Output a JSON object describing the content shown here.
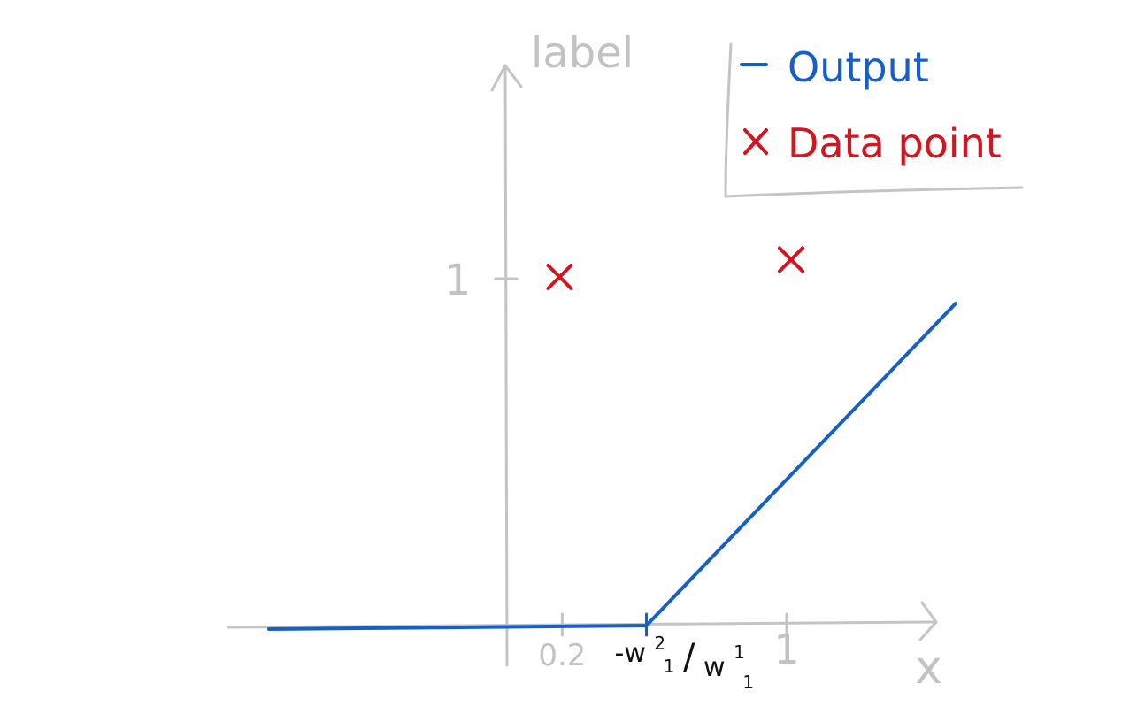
{
  "chart_data": {
    "type": "line",
    "xlabel": "x",
    "ylabel": "label",
    "x_ticks": [
      {
        "value": 0.2,
        "label": "0.2",
        "special": false
      },
      {
        "value": 0.5,
        "label": "-w",
        "special": true
      },
      {
        "value": 1,
        "label": "1",
        "special": false
      }
    ],
    "y_ticks": [
      {
        "value": 1,
        "label": "1"
      }
    ],
    "xlim": [
      -0.85,
      1.5
    ],
    "ylim": [
      -0.1,
      1.65
    ],
    "series": [
      {
        "name": "Output",
        "kind": "line",
        "color": "#1560c8",
        "x": [
          -0.85,
          0.5,
          1.6
        ],
        "y": [
          0.0,
          0.0,
          0.99
        ]
      },
      {
        "name": "Data point",
        "kind": "scatter",
        "color": "#d4141e",
        "x": [
          0.2,
          1.0
        ],
        "y": [
          1.0,
          1.05
        ]
      }
    ],
    "legend": {
      "position": "top-right",
      "entries": [
        "Output",
        "Data point"
      ]
    },
    "annotations": {
      "threshold_label": {
        "prefix": "-w",
        "numerator_sup": "2",
        "numerator_sub": "1",
        "slash": "/",
        "denominator": "w",
        "denominator_sup": "1",
        "denominator_sub": "1"
      }
    },
    "grid": false
  }
}
